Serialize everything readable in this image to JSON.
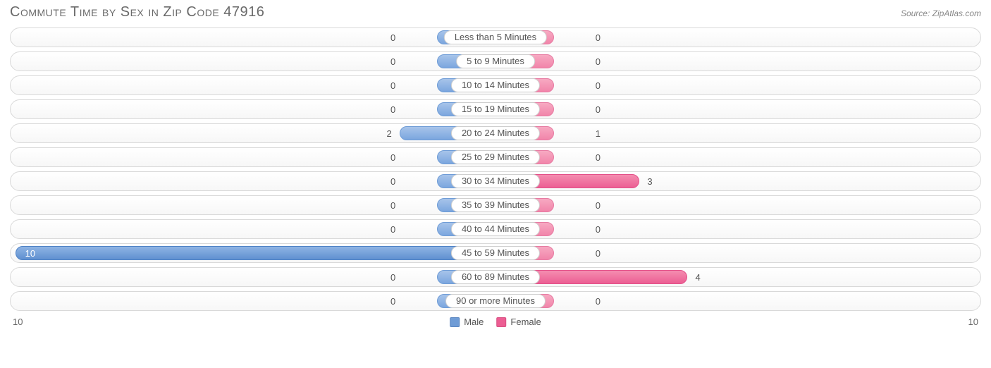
{
  "title": "Commute Time by Sex in Zip Code 47916",
  "source": "Source: ZipAtlas.com",
  "axis_max": 10,
  "min_bar_width_pct": 6.0,
  "label_half_width_pct": 9.5,
  "value_label_gap_pct": 0.8,
  "colors": {
    "male_bar": "#7ba6de",
    "male_bar_big": "#5f90d0",
    "female_bar": "#f185aa",
    "female_bar_big": "#ec5e93",
    "track_border": "#d9d9d9",
    "text": "#555555",
    "title_text": "#6a6a6a",
    "bg": "#ffffff"
  },
  "legend": {
    "male": "Male",
    "female": "Female"
  },
  "rows": [
    {
      "label": "Less than 5 Minutes",
      "male": 0,
      "female": 0
    },
    {
      "label": "5 to 9 Minutes",
      "male": 0,
      "female": 0
    },
    {
      "label": "10 to 14 Minutes",
      "male": 0,
      "female": 0
    },
    {
      "label": "15 to 19 Minutes",
      "male": 0,
      "female": 0
    },
    {
      "label": "20 to 24 Minutes",
      "male": 2,
      "female": 1
    },
    {
      "label": "25 to 29 Minutes",
      "male": 0,
      "female": 0
    },
    {
      "label": "30 to 34 Minutes",
      "male": 0,
      "female": 3
    },
    {
      "label": "35 to 39 Minutes",
      "male": 0,
      "female": 0
    },
    {
      "label": "40 to 44 Minutes",
      "male": 0,
      "female": 0
    },
    {
      "label": "45 to 59 Minutes",
      "male": 10,
      "female": 0
    },
    {
      "label": "60 to 89 Minutes",
      "male": 0,
      "female": 4
    },
    {
      "label": "90 or more Minutes",
      "male": 0,
      "female": 0
    }
  ]
}
